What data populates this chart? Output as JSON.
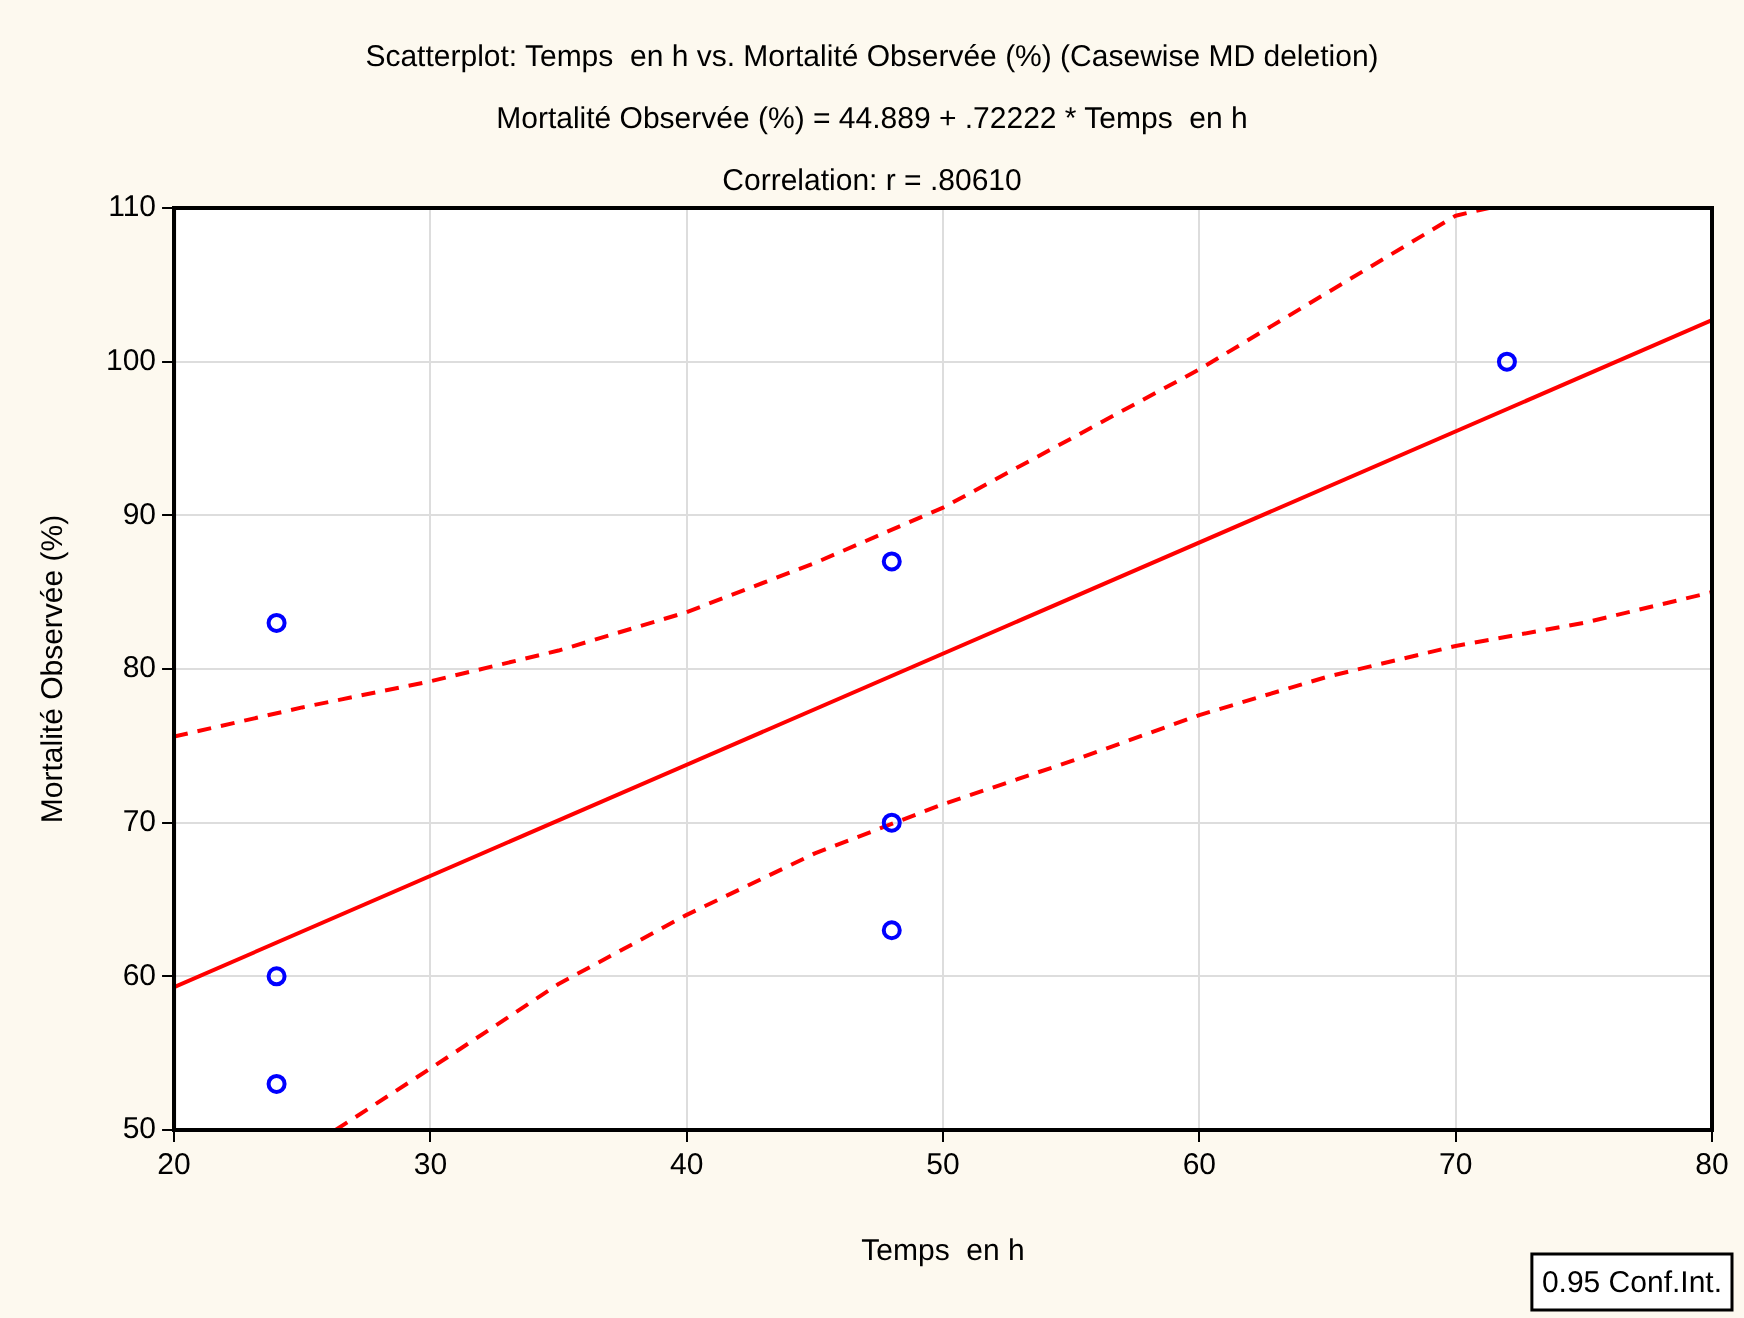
{
  "chart_data": {
    "type": "scatter",
    "title": "Scatterplot: Temps  en h vs. Mortalité Observée (%) (Casewise MD deletion)",
    "subtitle": "Mortalité Observée (%) = 44.889 + .72222 * Temps  en h",
    "xlabel": "Temps  en h",
    "ylabel": "Mortalité Observée (%)",
    "annotations": [
      "Correlation: r = .80610",
      "0.95 Conf.Int."
    ],
    "xlim": [
      20,
      80
    ],
    "xticks": [
      20,
      30,
      40,
      50,
      60,
      70,
      80
    ],
    "ylim": [
      50,
      110
    ],
    "yticks": [
      50,
      60,
      70,
      80,
      90,
      100,
      110
    ],
    "grid": true,
    "legend": false,
    "marker": "circle",
    "series": [
      {
        "color": "#0000ff",
        "x": [
          24,
          24,
          24,
          48,
          48,
          48,
          72
        ],
        "values": [
          83,
          60,
          53,
          87,
          70,
          63,
          100
        ]
      },
      {
        "type": "line",
        "color": "#ff0000",
        "marker": "none",
        "line_style": "solid",
        "x": [
          20,
          80
        ],
        "values": [
          59.3,
          102.7
        ]
      },
      {
        "type": "line",
        "color": "#ff0000",
        "marker": "none",
        "line_style": "dashed",
        "x": [
          20,
          25,
          30,
          35,
          40,
          45,
          50,
          55,
          60,
          65,
          70,
          71.3
        ],
        "values": [
          75.6,
          77.5,
          79.2,
          81.2,
          83.7,
          86.9,
          90.5,
          95,
          99.5,
          104.5,
          109.5,
          110
        ]
      },
      {
        "type": "line",
        "color": "#ff0000",
        "marker": "none",
        "line_style": "dashed",
        "x": [
          26.3,
          30,
          35,
          40,
          45,
          50,
          55,
          60,
          65,
          70,
          75,
          80
        ],
        "values": [
          50,
          54,
          59.5,
          64,
          68,
          71.2,
          74,
          77,
          79.5,
          81.5,
          83,
          85
        ]
      }
    ]
  }
}
